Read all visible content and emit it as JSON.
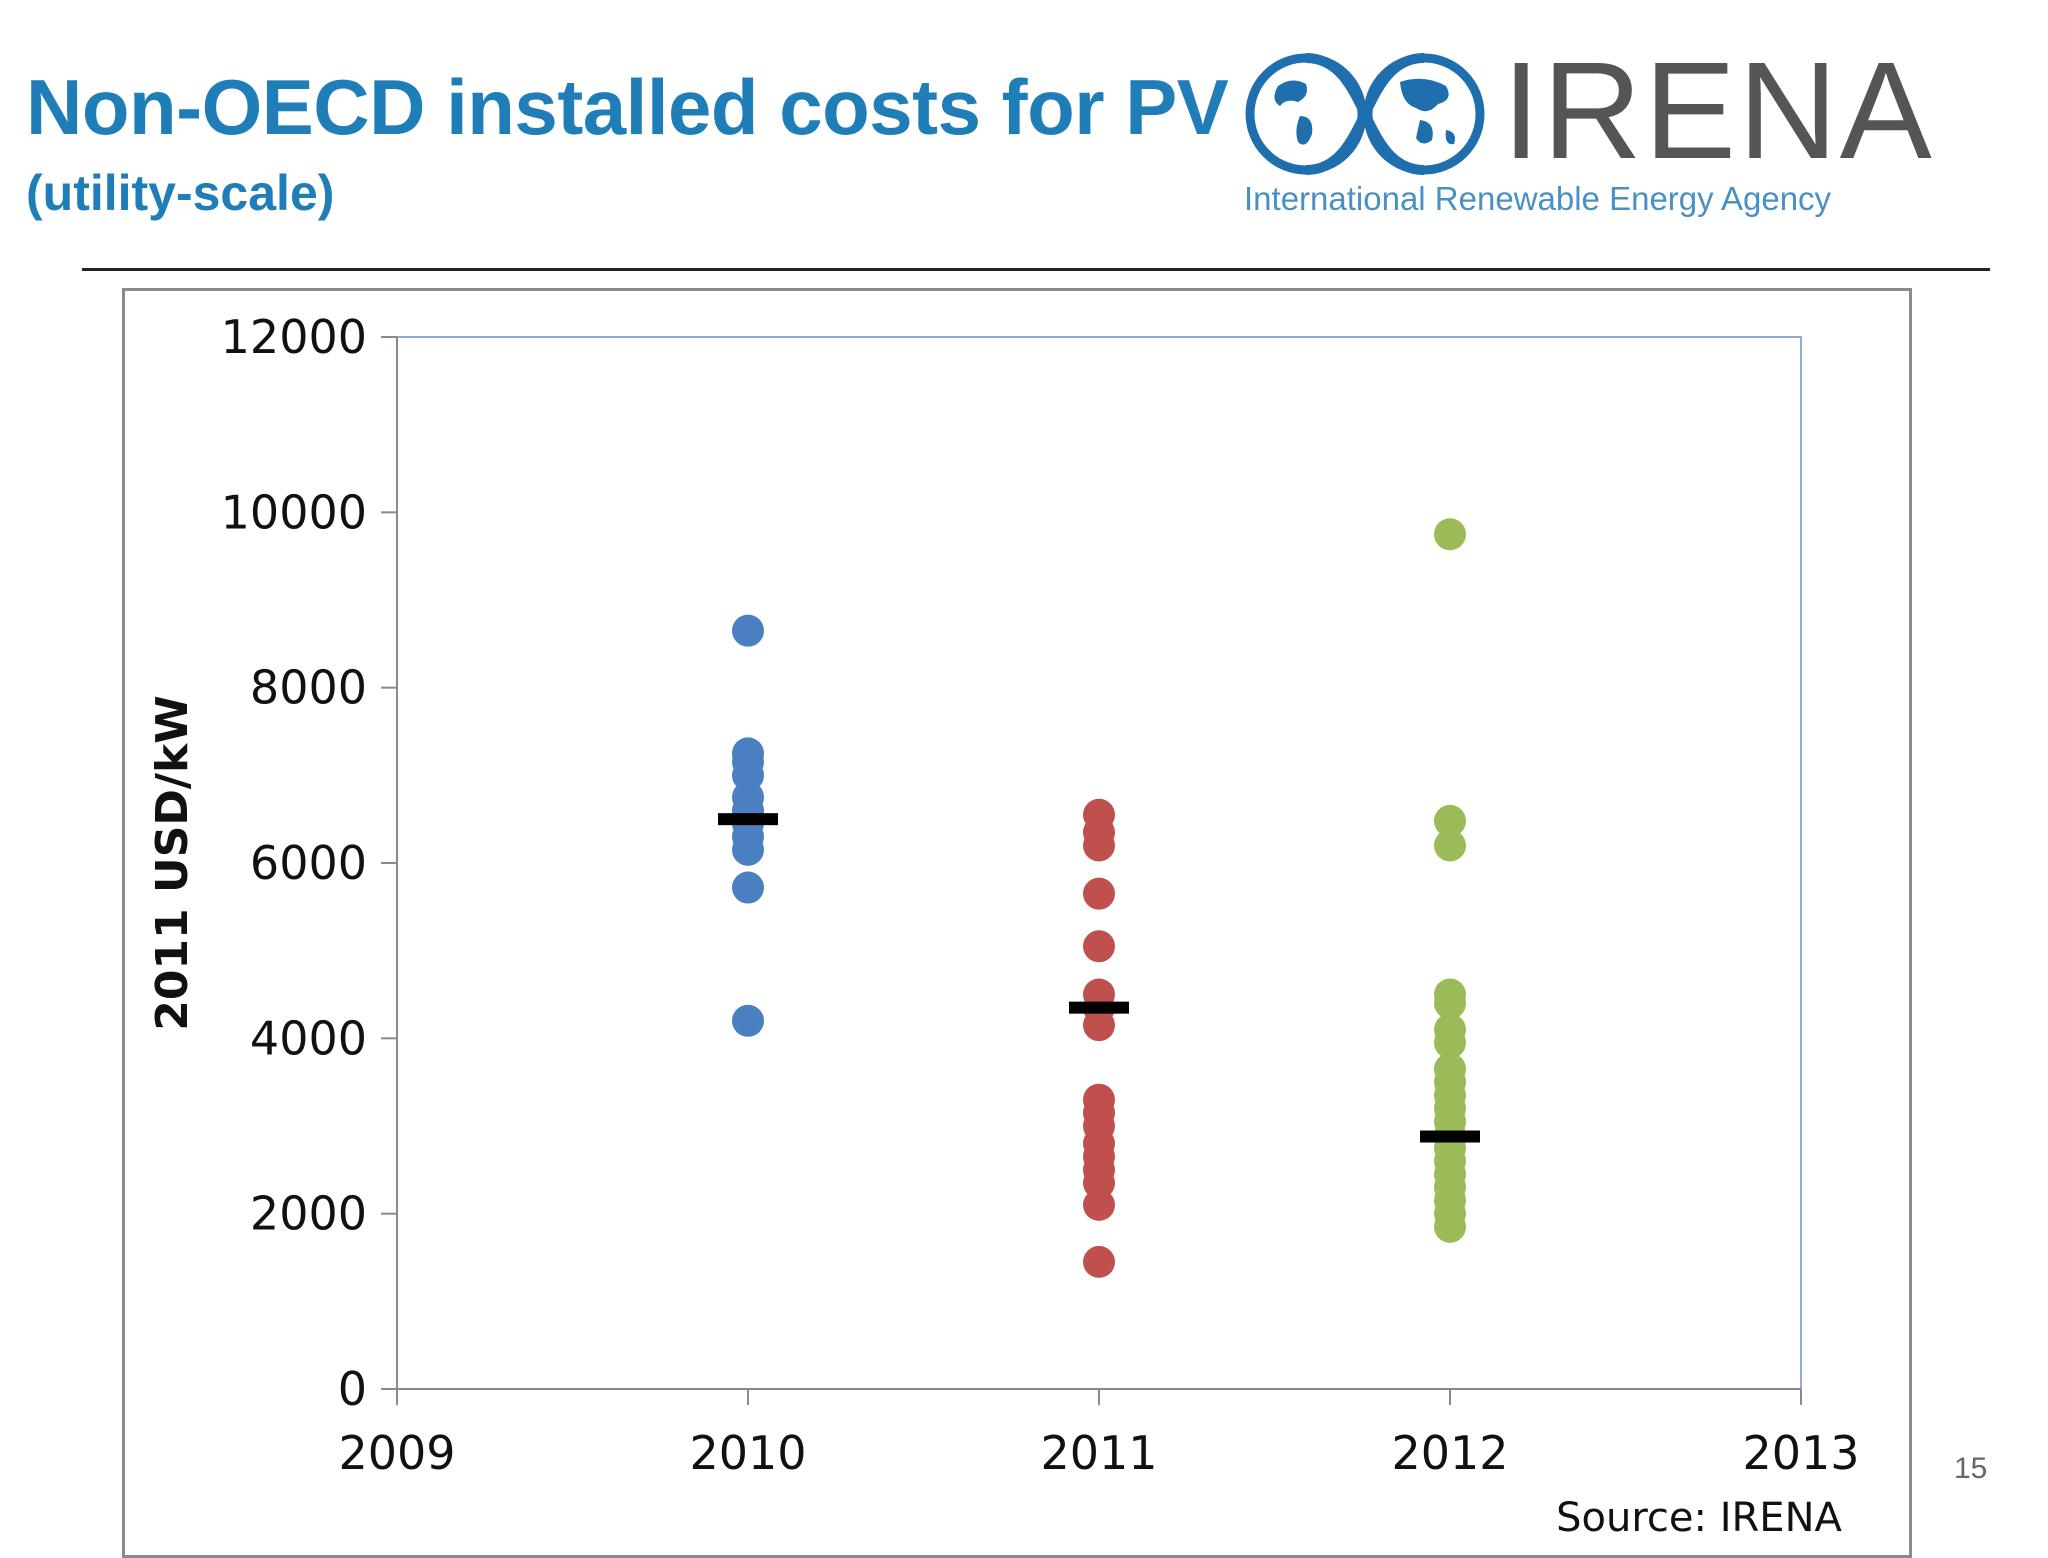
{
  "slide": {
    "title": "Non-OECD installed costs for PV",
    "subtitle": "(utility-scale)",
    "page_number": "15"
  },
  "logo": {
    "wordmark": "IRENA",
    "tagline": "International Renewable Energy Agency",
    "icon": "globe-infinity-icon"
  },
  "chart_data": {
    "type": "scatter",
    "title": "",
    "xlabel": "",
    "ylabel": "2011 USD/kW",
    "xlim": [
      2009,
      2013
    ],
    "ylim": [
      0,
      12000
    ],
    "x_ticks": [
      "2009",
      "2010",
      "2011",
      "2012",
      "2013"
    ],
    "y_ticks": [
      "0",
      "2000",
      "4000",
      "6000",
      "8000",
      "10000",
      "12000"
    ],
    "grid": false,
    "legend": "none",
    "source": "Source: IRENA",
    "series": [
      {
        "x": 2010,
        "color": "#4a7fc1",
        "values": [
          8650,
          7250,
          7150,
          7000,
          6750,
          6600,
          6450,
          6300,
          6150,
          5720,
          4200
        ],
        "average": 6500
      },
      {
        "x": 2011,
        "color": "#c0504d",
        "values": [
          6550,
          6350,
          6200,
          5650,
          5050,
          4500,
          4350,
          4150,
          3300,
          3150,
          3000,
          2800,
          2650,
          2500,
          2350,
          2100,
          1450
        ],
        "average": 4350
      },
      {
        "x": 2012,
        "color": "#9bbb59",
        "values": [
          9750,
          6480,
          6200,
          4500,
          4400,
          4100,
          3950,
          3650,
          3500,
          3350,
          3200,
          3050,
          2900,
          2750,
          2600,
          2450,
          2300,
          2150,
          2000,
          1850
        ],
        "average": 2880
      }
    ],
    "average_marker_color": "#000000"
  }
}
